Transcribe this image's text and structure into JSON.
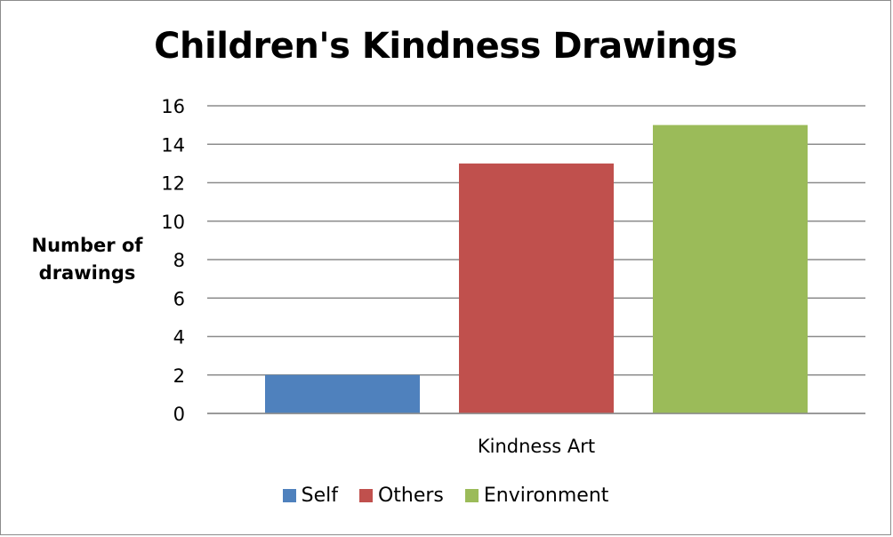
{
  "chart_data": {
    "type": "bar",
    "title": "Children's Kindness Drawings",
    "ylabel_lines": [
      "Number of",
      "drawings"
    ],
    "xlabel": "",
    "categories": [
      "Kindness Art"
    ],
    "series": [
      {
        "name": "Self",
        "values": [
          2
        ],
        "color": "#4f81bd"
      },
      {
        "name": "Others",
        "values": [
          13
        ],
        "color": "#c0504d"
      },
      {
        "name": "Environment",
        "values": [
          15
        ],
        "color": "#9bbb59"
      }
    ],
    "ylim": [
      0,
      16
    ],
    "yticks": [
      "0",
      "2",
      "4",
      "6",
      "8",
      "10",
      "12",
      "14",
      "16"
    ],
    "grid": true,
    "legend_position": "bottom"
  }
}
